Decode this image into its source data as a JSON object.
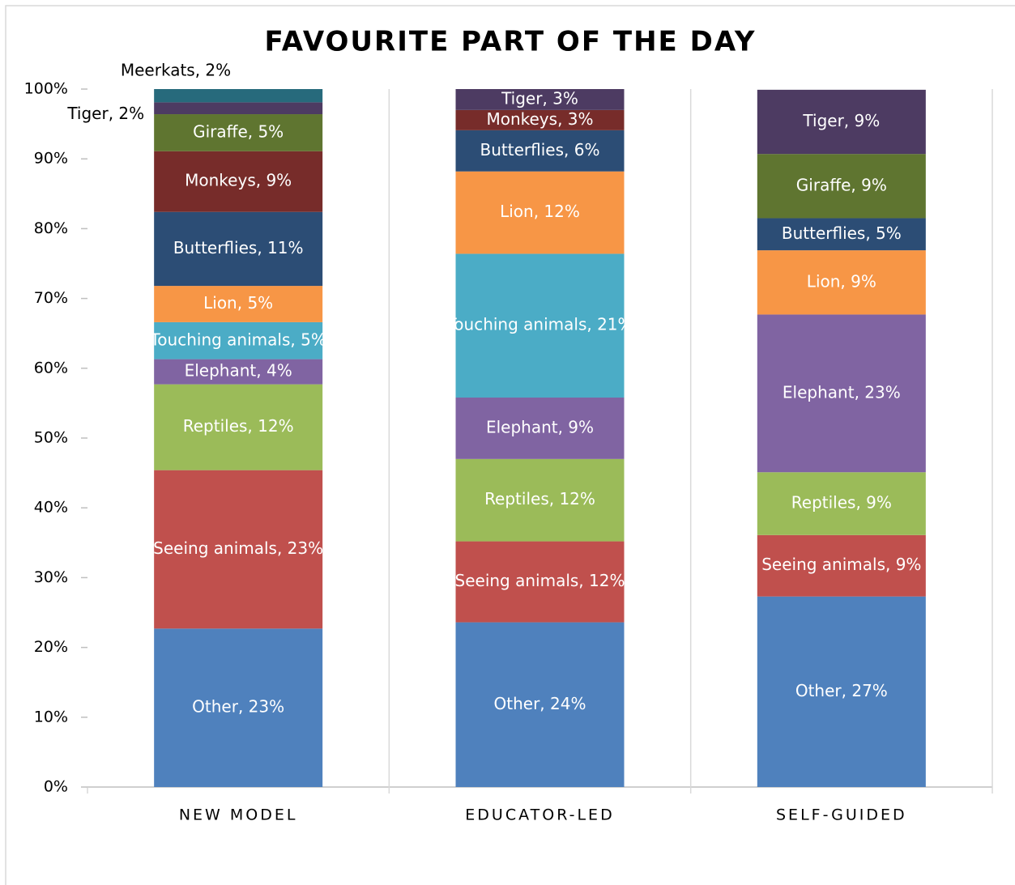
{
  "chart_data": {
    "type": "stacked_bar",
    "title": "FAVOURITE PART OF THE DAY",
    "categories": [
      "NEW MODEL",
      "EDUCATOR-LED",
      "SELF-GUIDED"
    ],
    "ylim": [
      0,
      100
    ],
    "yticks": [
      {
        "value": 0,
        "label": "0%"
      },
      {
        "value": 10,
        "label": "10%"
      },
      {
        "value": 20,
        "label": "20%"
      },
      {
        "value": 30,
        "label": "30%"
      },
      {
        "value": 40,
        "label": "40%"
      },
      {
        "value": 50,
        "label": "50%"
      },
      {
        "value": 60,
        "label": "60%"
      },
      {
        "value": 70,
        "label": "70%"
      },
      {
        "value": 80,
        "label": "80%"
      },
      {
        "value": 90,
        "label": "90%"
      },
      {
        "value": 100,
        "label": "100%"
      }
    ],
    "series": [
      {
        "name": "Other",
        "color": "#4f81bd",
        "values": [
          22.7,
          23.6,
          27.3
        ],
        "value_labels": [
          "Other, 23%",
          "Other, 24%",
          "Other, 27%"
        ]
      },
      {
        "name": "Seeing animals",
        "color": "#c0504d",
        "values": [
          22.7,
          11.6,
          8.8
        ],
        "value_labels": [
          "Seeing animals, 23%",
          "Seeing animals, 12%",
          "Seeing animals, 9%"
        ]
      },
      {
        "name": "Reptiles",
        "color": "#9bbb59",
        "values": [
          12.3,
          11.8,
          9.0
        ],
        "value_labels": [
          "Reptiles, 12%",
          "Reptiles, 12%",
          "Reptiles, 9%"
        ]
      },
      {
        "name": "Elephant",
        "color": "#8064a2",
        "values": [
          3.6,
          8.8,
          22.6
        ],
        "value_labels": [
          "Elephant, 4%",
          "Elephant, 9%",
          "Elephant, 23%"
        ]
      },
      {
        "name": "Touching animals",
        "color": "#4bacc6",
        "values": [
          5.3,
          20.6,
          null
        ],
        "value_labels": [
          "Touching animals, 5%",
          "Touching animals, 21%",
          null
        ]
      },
      {
        "name": "Lion",
        "color": "#f79646",
        "values": [
          5.2,
          11.8,
          9.2
        ],
        "value_labels": [
          "Lion, 5%",
          "Lion, 12%",
          "Lion, 9%"
        ]
      },
      {
        "name": "Butterflies",
        "color": "#2c4d75",
        "values": [
          10.6,
          5.9,
          4.6
        ],
        "value_labels": [
          "Butterflies, 11%",
          "Butterflies, 6%",
          "Butterflies, 5%"
        ]
      },
      {
        "name": "Monkeys",
        "color": "#772c2a",
        "values": [
          8.7,
          2.9,
          null
        ],
        "value_labels": [
          "Monkeys, 9%",
          "Monkeys, 3%",
          null
        ]
      },
      {
        "name": "Giraffe",
        "color": "#5f7530",
        "values": [
          5.3,
          null,
          9.2
        ],
        "value_labels": [
          "Giraffe, 5%",
          null,
          "Giraffe, 9%"
        ]
      },
      {
        "name": "Tiger",
        "color": "#4d3b62",
        "values": [
          1.7,
          3.0,
          9.2
        ],
        "value_labels": [
          "Tiger, 2%",
          "Tiger, 3%",
          "Tiger, 9%"
        ]
      },
      {
        "name": "Meerkats",
        "color": "#276a7c",
        "values": [
          1.9,
          null,
          null
        ],
        "value_labels": [
          "Meerkats, 2%",
          null,
          null
        ]
      }
    ]
  }
}
